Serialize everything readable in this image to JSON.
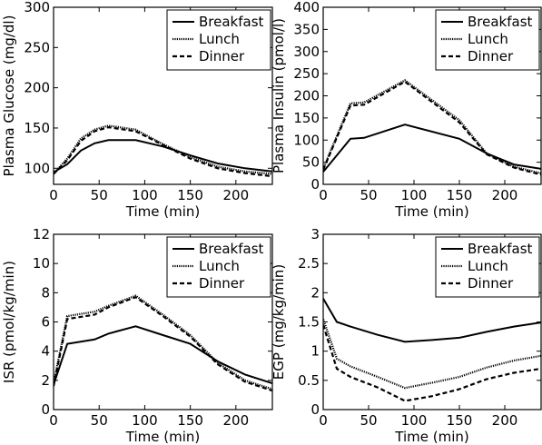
{
  "chart_data": [
    {
      "type": "line",
      "xlabel": "Time (min)",
      "ylabel": "Plasma Glucose (mg/dl)",
      "xlim": [
        0,
        240
      ],
      "ylim": [
        80,
        300
      ],
      "xticks": [
        0,
        50,
        100,
        150,
        200
      ],
      "yticks": [
        100,
        150,
        200,
        250,
        300
      ],
      "legend": "top-right",
      "series": [
        {
          "name": "Breakfast",
          "style": "solid",
          "x": [
            0,
            15,
            30,
            45,
            60,
            90,
            120,
            150,
            180,
            210,
            240
          ],
          "y": [
            95,
            105,
            122,
            131,
            135,
            135,
            127,
            116,
            106,
            100,
            96
          ]
        },
        {
          "name": "Lunch",
          "style": "dotted",
          "x": [
            0,
            15,
            30,
            45,
            60,
            90,
            120,
            150,
            180,
            210,
            240
          ],
          "y": [
            93,
            112,
            137,
            148,
            153,
            148,
            130,
            114,
            102,
            96,
            93
          ]
        },
        {
          "name": "Dinner",
          "style": "dashed",
          "x": [
            0,
            15,
            30,
            45,
            60,
            90,
            120,
            150,
            180,
            210,
            240
          ],
          "y": [
            93,
            110,
            134,
            146,
            151,
            146,
            129,
            112,
            100,
            94,
            90
          ]
        }
      ]
    },
    {
      "type": "line",
      "xlabel": "Time (min)",
      "ylabel": "Plasma Insulin (pmol/l)",
      "xlim": [
        0,
        240
      ],
      "ylim": [
        0,
        400
      ],
      "xticks": [
        0,
        50,
        100,
        150,
        200
      ],
      "yticks": [
        0,
        50,
        100,
        150,
        200,
        250,
        300,
        350,
        400
      ],
      "legend": "top-right",
      "series": [
        {
          "name": "Breakfast",
          "style": "solid",
          "x": [
            0,
            30,
            45,
            90,
            150,
            180,
            210,
            240
          ],
          "y": [
            28,
            103,
            105,
            135,
            103,
            70,
            45,
            35
          ]
        },
        {
          "name": "Lunch",
          "style": "dotted",
          "x": [
            0,
            30,
            45,
            90,
            150,
            180,
            210,
            240
          ],
          "y": [
            35,
            183,
            185,
            235,
            145,
            70,
            40,
            25
          ]
        },
        {
          "name": "Dinner",
          "style": "dashed",
          "x": [
            0,
            30,
            45,
            90,
            150,
            180,
            210,
            240
          ],
          "y": [
            33,
            178,
            180,
            232,
            140,
            68,
            38,
            22
          ]
        }
      ]
    },
    {
      "type": "line",
      "xlabel": "Time (min)",
      "ylabel": "ISR (pmol/kg/min)",
      "xlim": [
        0,
        240
      ],
      "ylim": [
        0,
        12
      ],
      "xticks": [
        0,
        50,
        100,
        150,
        200
      ],
      "yticks": [
        0,
        2,
        4,
        6,
        8,
        10,
        12
      ],
      "legend": "top-right",
      "series": [
        {
          "name": "Breakfast",
          "style": "solid",
          "x": [
            0,
            15,
            45,
            60,
            90,
            120,
            150,
            180,
            210,
            240
          ],
          "y": [
            1.7,
            4.5,
            4.8,
            5.2,
            5.7,
            5.1,
            4.5,
            3.3,
            2.4,
            1.8
          ]
        },
        {
          "name": "Lunch",
          "style": "dotted",
          "x": [
            0,
            15,
            45,
            60,
            90,
            120,
            150,
            180,
            210,
            240
          ],
          "y": [
            1.8,
            6.4,
            6.7,
            7.1,
            7.8,
            6.5,
            5.1,
            3.2,
            2.0,
            1.4
          ]
        },
        {
          "name": "Dinner",
          "style": "dashed",
          "x": [
            0,
            15,
            45,
            60,
            90,
            120,
            150,
            180,
            210,
            240
          ],
          "y": [
            1.6,
            6.2,
            6.5,
            7.0,
            7.7,
            6.4,
            5.0,
            3.1,
            1.9,
            1.3
          ]
        }
      ]
    },
    {
      "type": "line",
      "xlabel": "Time (min)",
      "ylabel": "EGP (mg/kg/min)",
      "xlim": [
        0,
        240
      ],
      "ylim": [
        0,
        3
      ],
      "xticks": [
        0,
        50,
        100,
        150,
        200
      ],
      "yticks": [
        0,
        0.5,
        1,
        1.5,
        2,
        2.5,
        3
      ],
      "ytick_labels": [
        "0",
        "0.5",
        "1",
        "1.5",
        "2",
        "2.5",
        "3"
      ],
      "legend": "top-right",
      "series": [
        {
          "name": "Breakfast",
          "style": "solid",
          "x": [
            0,
            15,
            30,
            60,
            90,
            120,
            150,
            180,
            210,
            240
          ],
          "y": [
            1.9,
            1.5,
            1.42,
            1.28,
            1.16,
            1.19,
            1.23,
            1.33,
            1.42,
            1.49
          ]
        },
        {
          "name": "Lunch",
          "style": "dotted",
          "x": [
            0,
            15,
            30,
            60,
            90,
            120,
            150,
            180,
            210,
            240
          ],
          "y": [
            1.55,
            0.87,
            0.74,
            0.56,
            0.37,
            0.46,
            0.56,
            0.72,
            0.84,
            0.92
          ]
        },
        {
          "name": "Dinner",
          "style": "dashed",
          "x": [
            0,
            15,
            30,
            60,
            90,
            120,
            150,
            180,
            210,
            240
          ],
          "y": [
            1.45,
            0.7,
            0.56,
            0.38,
            0.15,
            0.23,
            0.35,
            0.52,
            0.63,
            0.7
          ]
        }
      ]
    }
  ]
}
